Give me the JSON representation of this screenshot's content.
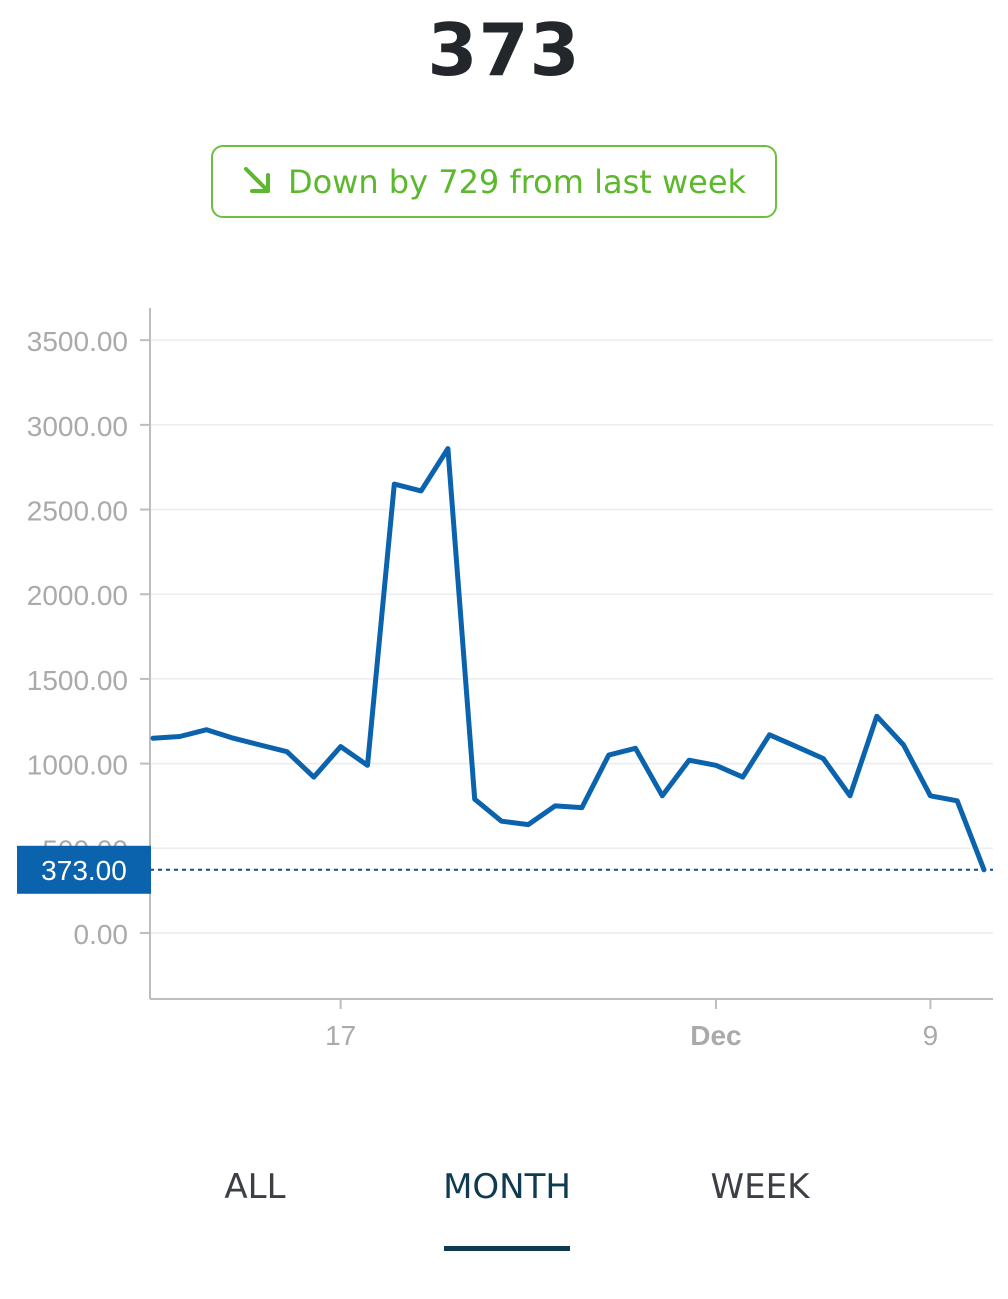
{
  "header": {
    "value": "373"
  },
  "change": {
    "text": "Down by 729 from last week",
    "direction_icon": "arrow-down-right-icon",
    "color": "#5cb82c"
  },
  "chart_data": {
    "type": "line",
    "y_ticks": [
      "3500.00",
      "3000.00",
      "2500.00",
      "2000.00",
      "1500.00",
      "1000.00",
      "500.00",
      "0.00"
    ],
    "x_ticks": [
      {
        "label": "17",
        "bold": false,
        "x": "Nov 17"
      },
      {
        "label": "Dec",
        "bold": true,
        "x": "Dec 1"
      },
      {
        "label": "9",
        "bold": false,
        "x": "Dec 9"
      }
    ],
    "ylim": [
      -390,
      3690
    ],
    "grid": true,
    "series": [
      {
        "color": "#0b63ad",
        "points": [
          {
            "x": "Nov 10",
            "y": 1150
          },
          {
            "x": "Nov 11",
            "y": 1160
          },
          {
            "x": "Nov 12",
            "y": 1200
          },
          {
            "x": "Nov 13",
            "y": 1150
          },
          {
            "x": "Nov 14",
            "y": 1110
          },
          {
            "x": "Nov 15",
            "y": 1070
          },
          {
            "x": "Nov 16",
            "y": 920
          },
          {
            "x": "Nov 17",
            "y": 1100
          },
          {
            "x": "Nov 18",
            "y": 990
          },
          {
            "x": "Nov 19",
            "y": 2650
          },
          {
            "x": "Nov 20",
            "y": 2610
          },
          {
            "x": "Nov 21",
            "y": 2860
          },
          {
            "x": "Nov 22",
            "y": 790
          },
          {
            "x": "Nov 23",
            "y": 660
          },
          {
            "x": "Nov 24",
            "y": 640
          },
          {
            "x": "Nov 25",
            "y": 750
          },
          {
            "x": "Nov 26",
            "y": 740
          },
          {
            "x": "Nov 27",
            "y": 1050
          },
          {
            "x": "Nov 28",
            "y": 1090
          },
          {
            "x": "Nov 29",
            "y": 810
          },
          {
            "x": "Nov 30",
            "y": 1020
          },
          {
            "x": "Dec 1",
            "y": 990
          },
          {
            "x": "Dec 2",
            "y": 920
          },
          {
            "x": "Dec 3",
            "y": 1170
          },
          {
            "x": "Dec 4",
            "y": 1100
          },
          {
            "x": "Dec 5",
            "y": 1030
          },
          {
            "x": "Dec 6",
            "y": 810
          },
          {
            "x": "Dec 7",
            "y": 1280
          },
          {
            "x": "Dec 8",
            "y": 1110
          },
          {
            "x": "Dec 9",
            "y": 810
          },
          {
            "x": "Dec 10",
            "y": 780
          },
          {
            "x": "Dec 11",
            "y": 373
          }
        ]
      }
    ],
    "current_marker": {
      "value": 373,
      "label": "373.00",
      "color": "#0b63ad"
    }
  },
  "tabs": [
    {
      "label": "ALL",
      "active": false
    },
    {
      "label": "MONTH",
      "active": true
    },
    {
      "label": "WEEK",
      "active": false
    }
  ]
}
